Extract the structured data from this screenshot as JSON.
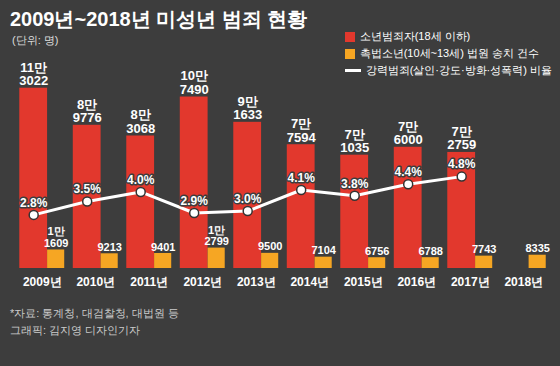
{
  "chart_data": {
    "type": "bar",
    "title": "2009년~2018년 미성년 범죄 현황",
    "subtitle": "(단위: 명)",
    "categories": [
      "2009년",
      "2010년",
      "2011년",
      "2012년",
      "2013년",
      "2014년",
      "2015년",
      "2016년",
      "2017년",
      "2018년"
    ],
    "series": [
      {
        "name": "소년범죄자(18세 이하)",
        "type": "bar",
        "color": "#e2382d",
        "values": [
          113022,
          89776,
          83068,
          107490,
          91633,
          77594,
          71035,
          76000,
          72759,
          null
        ],
        "value_labels": [
          "11만\n3022",
          "8만\n9776",
          "8만\n3068",
          "10만\n7490",
          "9만\n1633",
          "7만\n7594",
          "7만\n1035",
          "7만\n6000",
          "7만\n2759",
          null
        ]
      },
      {
        "name": "촉법소년(10세~13세) 법원 송치 건수",
        "type": "bar",
        "color": "#f6a623",
        "values": [
          11609,
          9213,
          9401,
          12799,
          9500,
          7104,
          6756,
          6788,
          7743,
          8335
        ],
        "value_labels": [
          "1만\n1609",
          "9213",
          "9401",
          "1만\n2799",
          "9500",
          "7104",
          "6756",
          "6788",
          "7743",
          "8335"
        ]
      },
      {
        "name": "강력범죄(살인·강도·방화·성폭력) 비율",
        "type": "line",
        "axis": "y2",
        "color": "#ffffff",
        "marker": "circle",
        "values": [
          2.8,
          3.5,
          4.0,
          2.9,
          3.0,
          4.1,
          3.8,
          4.4,
          4.8,
          null
        ],
        "value_labels": [
          "2.8%",
          "3.5%",
          "4.0%",
          "2.9%",
          "3.0%",
          "4.1%",
          "3.8%",
          "4.4%",
          "4.8%",
          null
        ]
      }
    ],
    "ylim": [
      0,
      168000
    ],
    "yticks": [],
    "y2lim": [
      0,
      14
    ],
    "y2ticks": [],
    "tick_labels": "x",
    "data_labels": true,
    "grid": false,
    "legend": "top-right",
    "caption": [
      "*자료: 통계청, 대검찰청, 대법원 등",
      "그래픽: 김지영 디자인기자"
    ]
  }
}
